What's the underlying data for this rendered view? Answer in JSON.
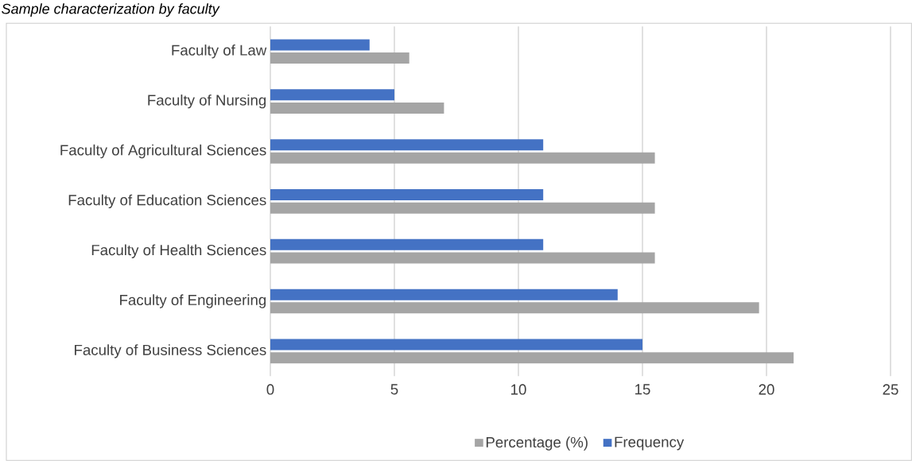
{
  "chart_data": {
    "type": "bar",
    "orientation": "horizontal",
    "title": "*Sample characterization by faculty*",
    "categories": [
      "Faculty of Law",
      "Faculty of Nursing",
      "Faculty of Agricultural Sciences",
      "Faculty of Education Sciences",
      "Faculty of Health Sciences",
      "Faculty of Engineering",
      "Faculty of Business Sciences"
    ],
    "series": [
      {
        "name": "Percentage (%)",
        "color": "#a5a5a5",
        "values": [
          5.6,
          7.0,
          15.5,
          15.5,
          15.5,
          19.7,
          21.1
        ]
      },
      {
        "name": "Frequency",
        "color": "#4472c4",
        "values": [
          4,
          5,
          11,
          11,
          11,
          14,
          15
        ]
      }
    ],
    "xlim": [
      0,
      25
    ],
    "xticks": [
      0,
      5,
      10,
      15,
      20,
      25
    ],
    "grid": "x",
    "legend": "bottom"
  }
}
